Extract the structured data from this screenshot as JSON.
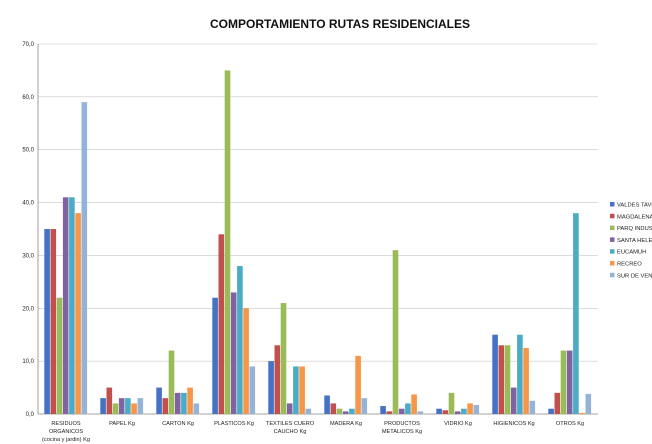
{
  "chart_data": {
    "type": "bar",
    "title": "COMPORTAMIENTO RUTAS RESIDENCIALES",
    "xlabel": "",
    "ylabel": "",
    "ylim": [
      0,
      70
    ],
    "yticks": [
      "0,0",
      "10,0",
      "20,0",
      "30,0",
      "40,0",
      "50,0",
      "60,0",
      "70,0"
    ],
    "ytick_values": [
      0,
      10,
      20,
      30,
      40,
      50,
      60,
      70
    ],
    "grid": true,
    "legend_position": "right",
    "categories": [
      [
        "RESIDUOS",
        "ORGANICOS",
        "(cocina y jardin) Kg"
      ],
      [
        "PAPEL Kg"
      ],
      [
        "CARTON Kg"
      ],
      [
        "PLASTICOS Kg"
      ],
      [
        "TEXTILES CUERO",
        "CAUCHO Kg"
      ],
      [
        "MADERA Kg"
      ],
      [
        "PRODUCTOS",
        "METALICOS Kg"
      ],
      [
        "VIDRIO Kg"
      ],
      [
        "HIGIENICOS Kg"
      ],
      [
        "OTROS Kg"
      ]
    ],
    "series": [
      {
        "name": "VALDES TAVE",
        "color": "#4472c4",
        "values": [
          35,
          3,
          5,
          22,
          10,
          3.5,
          1.5,
          1,
          15,
          1
        ]
      },
      {
        "name": "MAGDALENA",
        "color": "#c0504d",
        "values": [
          35,
          5,
          3,
          34,
          13,
          2,
          0.5,
          0.7,
          13,
          4
        ]
      },
      {
        "name": "PARQ INDUST",
        "color": "#9bbb59",
        "values": [
          22,
          2,
          12,
          65,
          21,
          1,
          31,
          4,
          13,
          12
        ]
      },
      {
        "name": "SANTA HELEN",
        "color": "#8064a2",
        "values": [
          41,
          3,
          4,
          23,
          2,
          0.5,
          1,
          0.5,
          5,
          12
        ]
      },
      {
        "name": "EUCAMUH",
        "color": "#4bacc6",
        "values": [
          41,
          3,
          4,
          28,
          9,
          1,
          2,
          1,
          15,
          38
        ]
      },
      {
        "name": "RECREO",
        "color": "#f79646",
        "values": [
          38,
          2,
          5,
          20,
          9,
          11,
          3.7,
          2,
          12.5,
          0.2
        ]
      },
      {
        "name": "SUR DE VENEC",
        "color": "#95b3d7",
        "values": [
          59,
          3,
          2,
          9,
          1,
          3,
          0.5,
          1.7,
          2.5,
          3.8
        ]
      }
    ]
  }
}
